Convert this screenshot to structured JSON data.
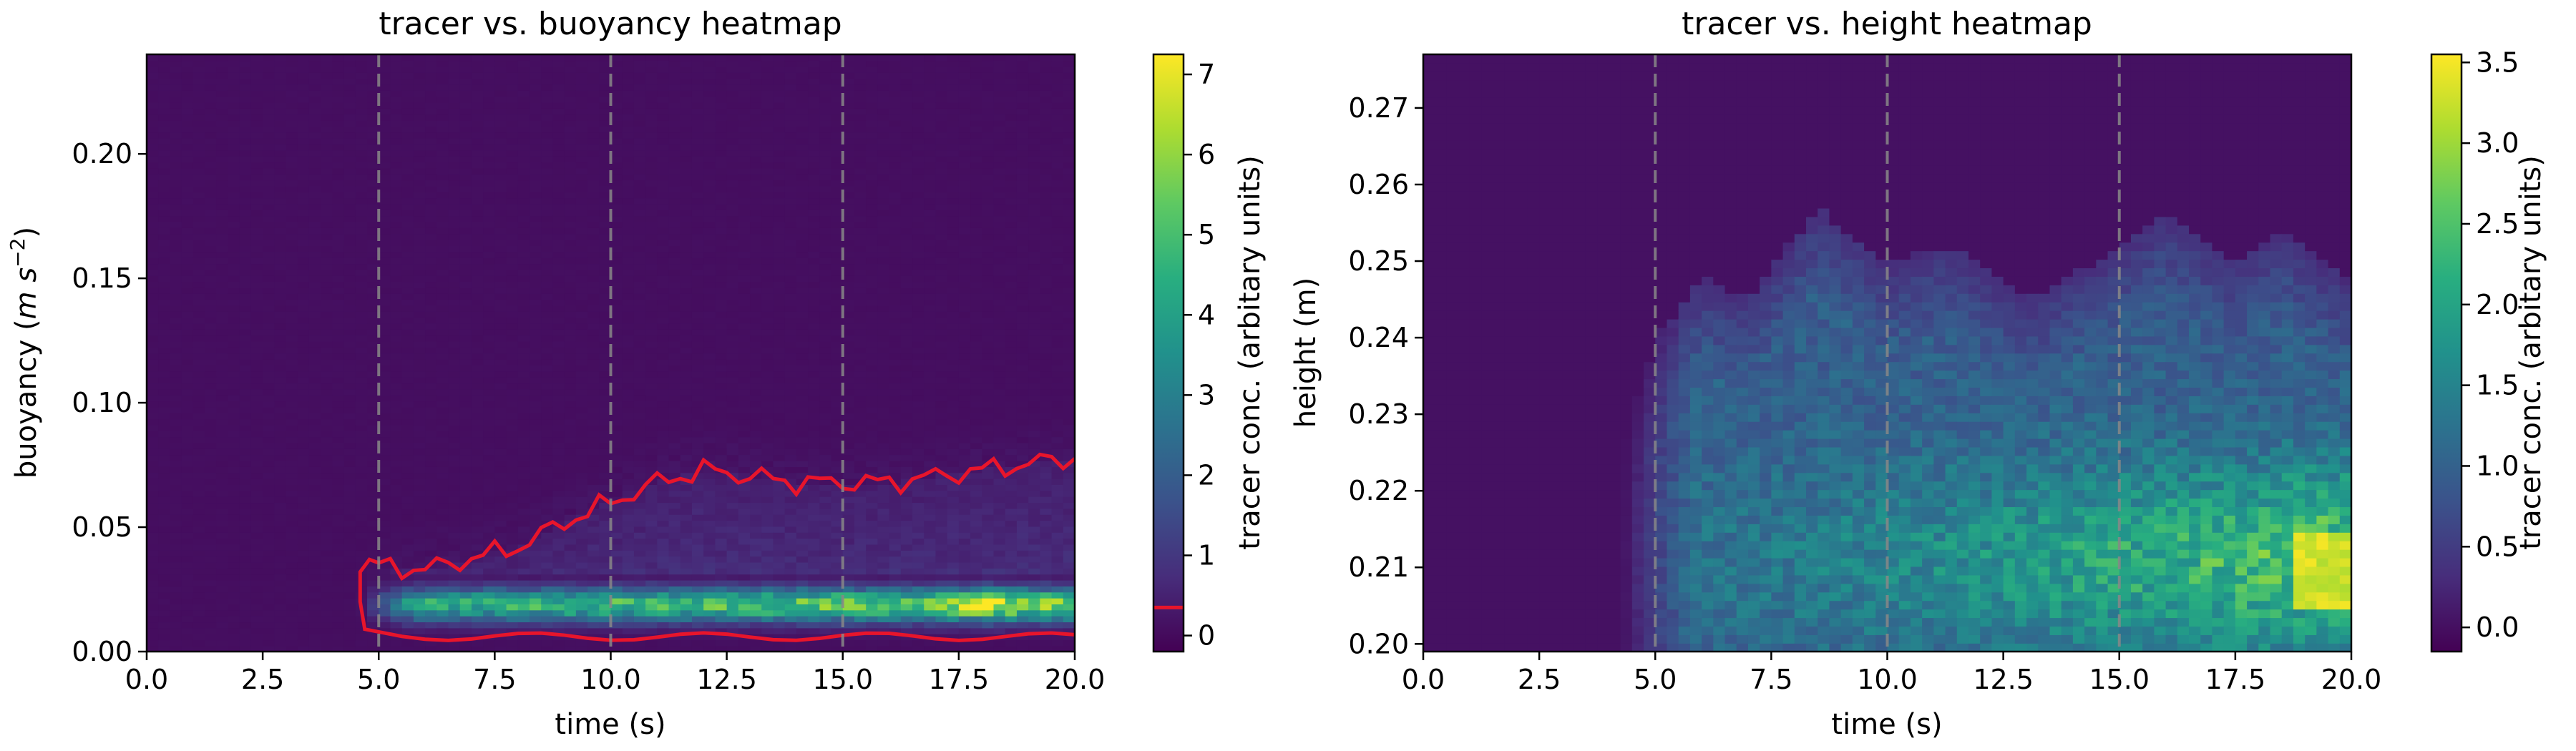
{
  "chart_data": [
    {
      "type": "heatmap",
      "title": "tracer vs. buoyancy heatmap",
      "xlabel": "time (s)",
      "ylabel": "buoyancy ($m s^{-2}$)",
      "xlim": [
        0.0,
        20.0
      ],
      "ylim": [
        0.0,
        0.24
      ],
      "xticks": [
        "0.0",
        "2.5",
        "5.0",
        "7.5",
        "10.0",
        "12.5",
        "15.0",
        "17.5",
        "20.0"
      ],
      "yticks": [
        "0.00",
        "0.05",
        "0.10",
        "0.15",
        "0.20"
      ],
      "vlines_x": [
        5.0,
        10.0,
        15.0
      ],
      "colormap": "viridis",
      "colorbar": {
        "label": "tracer conc. (arbitary units)",
        "range": [
          -0.2,
          7.25
        ],
        "ticks": [
          "0",
          "1",
          "2",
          "3",
          "4",
          "5",
          "6",
          "7"
        ],
        "contour_level": 0.35
      },
      "contour_color": "#e8152b",
      "values_summary": {
        "max": 7.2,
        "peak_time": 18.0,
        "peak_buoyancy": 0.018,
        "core_band": [
          0.008,
          0.03
        ],
        "onset_time": 4.6,
        "contour_top_by_time": [
          [
            4.6,
            0.035
          ],
          [
            6.0,
            0.033
          ],
          [
            8.0,
            0.042
          ],
          [
            9.0,
            0.052
          ],
          [
            10.0,
            0.06
          ],
          [
            11.0,
            0.068
          ],
          [
            12.0,
            0.073
          ],
          [
            14.0,
            0.068
          ],
          [
            16.0,
            0.068
          ],
          [
            18.0,
            0.073
          ],
          [
            20.0,
            0.078
          ]
        ]
      }
    },
    {
      "type": "heatmap",
      "title": "tracer vs. height heatmap",
      "xlabel": "time (s)",
      "ylabel": "height (m)",
      "xlim": [
        0.0,
        20.0
      ],
      "ylim": [
        0.199,
        0.277
      ],
      "xticks": [
        "0.0",
        "2.5",
        "5.0",
        "7.5",
        "10.0",
        "12.5",
        "15.0",
        "17.5",
        "20.0"
      ],
      "yticks": [
        "0.20",
        "0.21",
        "0.22",
        "0.23",
        "0.24",
        "0.25",
        "0.26",
        "0.27"
      ],
      "vlines_x": [
        5.0,
        10.0,
        15.0
      ],
      "colormap": "viridis",
      "colorbar": {
        "label": "tracer conc. (arbitary units)",
        "range": [
          -0.15,
          3.55
        ],
        "ticks": [
          "0.0",
          "0.5",
          "1.0",
          "1.5",
          "2.0",
          "2.5",
          "3.0",
          "3.5"
        ]
      },
      "values_summary": {
        "max": 3.5,
        "peak_time": 19.8,
        "peak_height": 0.21,
        "onset_time": 4.3,
        "plume_top_by_time": [
          [
            4.3,
            0.225
          ],
          [
            5.0,
            0.24
          ],
          [
            6.0,
            0.248
          ],
          [
            7.0,
            0.245
          ],
          [
            8.5,
            0.257
          ],
          [
            10.0,
            0.25
          ],
          [
            11.5,
            0.252
          ],
          [
            13.0,
            0.245
          ],
          [
            14.5,
            0.25
          ],
          [
            16.0,
            0.256
          ],
          [
            17.5,
            0.25
          ],
          [
            18.5,
            0.254
          ],
          [
            20.0,
            0.247
          ]
        ]
      }
    }
  ]
}
